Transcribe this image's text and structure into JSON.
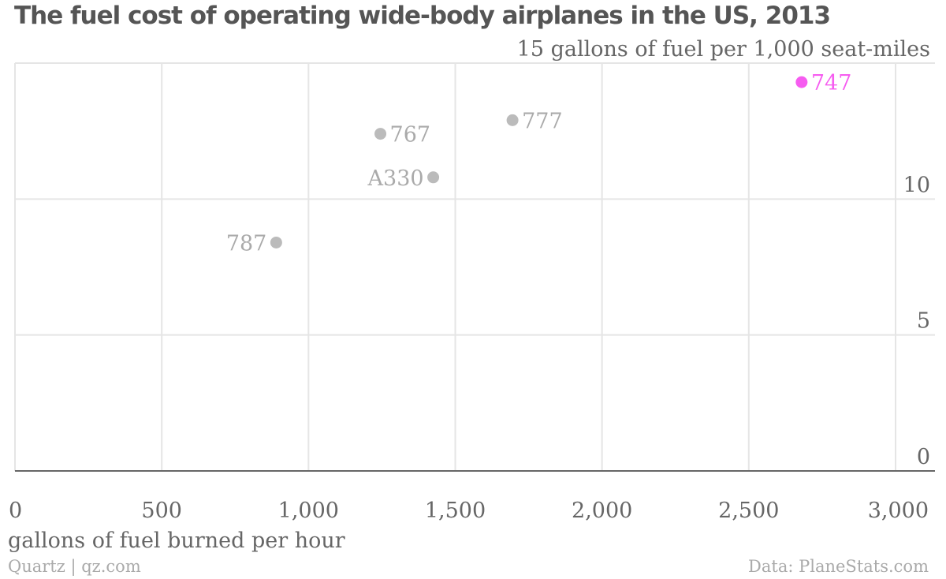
{
  "chart_data": {
    "type": "scatter",
    "title": "The fuel cost of operating wide-body airplanes in the US, 2013",
    "xlabel": "gallons of fuel burned per hour",
    "ylabel": "gallons of fuel per 1,000 seat-miles",
    "xlim": [
      0,
      3000
    ],
    "ylim": [
      0,
      15
    ],
    "x_ticks": [
      {
        "value": 0,
        "label": "0"
      },
      {
        "value": 500,
        "label": "500"
      },
      {
        "value": 1000,
        "label": "1,000"
      },
      {
        "value": 1500,
        "label": "1,500"
      },
      {
        "value": 2000,
        "label": "2,000"
      },
      {
        "value": 2500,
        "label": "2,500"
      },
      {
        "value": 3000,
        "label": "3,000"
      }
    ],
    "y_ticks": [
      {
        "value": 0,
        "label": "0"
      },
      {
        "value": 5,
        "label": "5"
      },
      {
        "value": 10,
        "label": "10"
      },
      {
        "value": 15,
        "label": "15 gallons of fuel per 1,000 seat-miles"
      }
    ],
    "grid": true,
    "points": [
      {
        "label": "747",
        "x": 2680,
        "y": 14.3,
        "color": "#f65cf0",
        "highlight": true
      },
      {
        "label": "777",
        "x": 1695,
        "y": 12.9,
        "color": "#bbbbbb",
        "highlight": false
      },
      {
        "label": "767",
        "x": 1245,
        "y": 12.4,
        "color": "#bbbbbb",
        "highlight": false
      },
      {
        "label": "A330",
        "x": 1425,
        "y": 10.8,
        "color": "#bbbbbb",
        "highlight": false
      },
      {
        "label": "787",
        "x": 890,
        "y": 8.4,
        "color": "#bbbbbb",
        "highlight": false
      }
    ]
  },
  "footer": {
    "source": "Quartz | qz.com",
    "credit": "Data: PlaneStats.com"
  },
  "colors": {
    "highlight": "#f65cf0",
    "muted_point": "#bbbbbb",
    "label_text": "#aaaaaa",
    "tick_text": "#666666",
    "grid": "#e5e5e5",
    "baseline": "#666666",
    "title": "#555555"
  }
}
